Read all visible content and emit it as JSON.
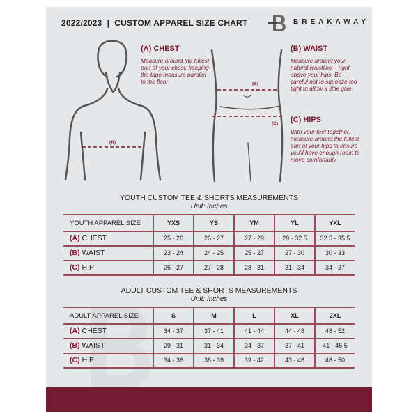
{
  "header": {
    "title": "2022/2023  |  CUSTOM APPAREL SIZE CHART",
    "brand": "BREAKAWAY",
    "logo_letter": "B"
  },
  "guides": {
    "chest": {
      "heading": "(A) CHEST",
      "text": "Measure around the fullest part of your chest, keeping the tape measure parallel to the floor",
      "marker": "(A)"
    },
    "waist": {
      "heading": "(B) WAIST",
      "text": "Measure around your natural waistline – right above your hips. Be careful not to squeeze too tight to allow a little give.",
      "marker": "(B)"
    },
    "hips": {
      "heading": "(C) HIPS",
      "text": "With your feet together, measure around the fullest part of your hips to ensure you'll have enough room to move comfortably.",
      "marker": "(C)"
    }
  },
  "youth": {
    "title": "YOUTH CUSTOM TEE & SHORTS MEASUREMENTS",
    "unit": "Unit: Inches",
    "header": [
      "YOUTH APPAREL SIZE",
      "YXS",
      "YS",
      "YM",
      "YL",
      "YXL"
    ],
    "rows": [
      {
        "tag": "(A)",
        "label": "CHEST",
        "values": [
          "25 - 26",
          "26 - 27",
          "27 - 29",
          "29 - 32.5",
          "32.5 - 35.5"
        ]
      },
      {
        "tag": "(B)",
        "label": "WAIST",
        "values": [
          "23 - 24",
          "24 - 25",
          "25 - 27",
          "27 - 30",
          "30 - 33"
        ]
      },
      {
        "tag": "(C)",
        "label": "HIP",
        "values": [
          "26 - 27",
          "27 - 28",
          "28 - 31",
          "31 - 34",
          "34 - 37"
        ]
      }
    ]
  },
  "adult": {
    "title": "ADULT CUSTOM TEE & SHORTS MEASUREMENTS",
    "unit": "Unit: Inches",
    "header": [
      "ADULT APPAREL SIZE",
      "S",
      "M",
      "L",
      "XL",
      "2XL"
    ],
    "rows": [
      {
        "tag": "(A)",
        "label": "CHEST",
        "values": [
          "34 - 37",
          "37 - 41",
          "41 - 44",
          "44 - 48",
          "48 - 52"
        ]
      },
      {
        "tag": "(B)",
        "label": "WAIST",
        "values": [
          "29 - 31",
          "31 - 34",
          "34 - 37",
          "37 - 41",
          "41 - 45.5"
        ]
      },
      {
        "tag": "(C)",
        "label": "HIP",
        "values": [
          "34 - 36",
          "36 - 39",
          "39 - 42",
          "43 - 46",
          "46 - 50"
        ]
      }
    ]
  },
  "colors": {
    "accent": "#731b30",
    "panel": "#e6e7e9",
    "text": "#222222"
  }
}
